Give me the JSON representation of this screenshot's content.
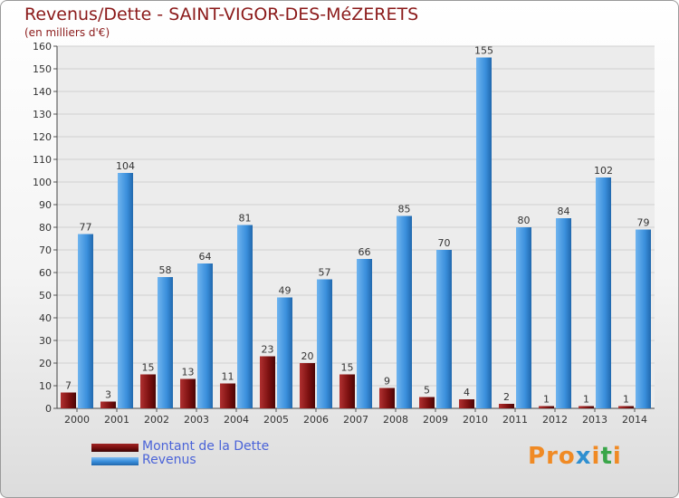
{
  "title": "Revenus/Dette - SAINT-VIGOR-DES-MéZERETS",
  "subtitle": "(en milliers d'€)",
  "logo": "Proxiti",
  "colors": {
    "debt": "#7a0f0f",
    "revenue": "#3a8fdc"
  },
  "chart_data": {
    "type": "bar",
    "categories": [
      "2000",
      "2001",
      "2002",
      "2003",
      "2004",
      "2005",
      "2006",
      "2007",
      "2008",
      "2009",
      "2010",
      "2011",
      "2012",
      "2013",
      "2014"
    ],
    "series": [
      {
        "name": "Montant de la Dette",
        "values": [
          7,
          3,
          15,
          13,
          11,
          23,
          20,
          15,
          9,
          5,
          4,
          2,
          1,
          1,
          1
        ]
      },
      {
        "name": "Revenus",
        "values": [
          77,
          104,
          58,
          64,
          81,
          49,
          57,
          66,
          85,
          70,
          155,
          80,
          84,
          102,
          79
        ]
      }
    ],
    "ylim": [
      0,
      160
    ],
    "yticks": [
      0,
      10,
      20,
      30,
      40,
      50,
      60,
      70,
      80,
      90,
      100,
      110,
      120,
      130,
      140,
      150,
      160
    ],
    "grid": true,
    "legend_position": "bottom-left"
  }
}
